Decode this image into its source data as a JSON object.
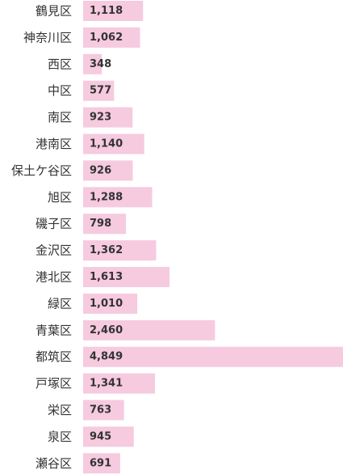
{
  "chart_data": {
    "type": "bar",
    "orientation": "horizontal",
    "categories": [
      "鶴見区",
      "神奈川区",
      "西区",
      "中区",
      "南区",
      "港南区",
      "保土ケ谷区",
      "旭区",
      "磯子区",
      "金沢区",
      "港北区",
      "緑区",
      "青葉区",
      "都筑区",
      "戸塚区",
      "栄区",
      "泉区",
      "瀬谷区"
    ],
    "values": [
      1118,
      1062,
      348,
      577,
      923,
      1140,
      926,
      1288,
      798,
      1362,
      1613,
      1010,
      2460,
      4849,
      1341,
      763,
      945,
      691
    ],
    "value_labels": [
      "1,118",
      "1,062",
      "348",
      "577",
      "923",
      "1,140",
      "926",
      "1,288",
      "798",
      "1,362",
      "1,613",
      "1,010",
      "2,460",
      "4,849",
      "1,341",
      "763",
      "945",
      "691"
    ],
    "title": "",
    "xlabel": "",
    "ylabel": "",
    "xlim": [
      0,
      4849
    ],
    "grid": false,
    "legend": "none",
    "colors": {
      "bar": "#f6cadf",
      "text": "#333333",
      "background": "#ffffff"
    }
  }
}
